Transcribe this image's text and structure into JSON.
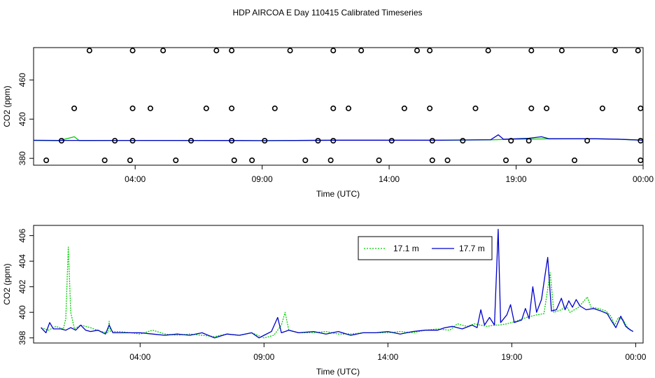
{
  "colors": {
    "green": "#00cc00",
    "blue": "#0000cc",
    "axis": "#000000"
  },
  "chart_data": [
    {
      "type": "scatter",
      "title": "HDP AIRCOA E  Day 110415  Calibrated Timeseries",
      "xlabel": "Time (UTC)",
      "ylabel": "CO2 (ppm)",
      "xlim": [
        0,
        24
      ],
      "ylim": [
        373,
        493
      ],
      "x_ticks": [
        4,
        9,
        14,
        19,
        24
      ],
      "x_tick_labels": [
        "04:00",
        "09:00",
        "14:00",
        "19:00",
        "00:00"
      ],
      "y_ticks": [
        380,
        420,
        460
      ],
      "y_tick_labels": [
        "380",
        "420",
        "460"
      ],
      "calibration_points": [
        {
          "x": 2.2,
          "y": 490
        },
        {
          "x": 3.9,
          "y": 490
        },
        {
          "x": 5.1,
          "y": 490
        },
        {
          "x": 7.2,
          "y": 490
        },
        {
          "x": 7.8,
          "y": 490
        },
        {
          "x": 10.1,
          "y": 490
        },
        {
          "x": 11.8,
          "y": 490
        },
        {
          "x": 12.9,
          "y": 490
        },
        {
          "x": 15.1,
          "y": 490
        },
        {
          "x": 15.6,
          "y": 490
        },
        {
          "x": 17.9,
          "y": 490
        },
        {
          "x": 19.6,
          "y": 490
        },
        {
          "x": 20.8,
          "y": 490
        },
        {
          "x": 22.9,
          "y": 490
        },
        {
          "x": 23.8,
          "y": 490
        },
        {
          "x": 1.6,
          "y": 431
        },
        {
          "x": 3.9,
          "y": 431
        },
        {
          "x": 4.6,
          "y": 431
        },
        {
          "x": 6.8,
          "y": 431
        },
        {
          "x": 7.8,
          "y": 431
        },
        {
          "x": 9.5,
          "y": 431
        },
        {
          "x": 11.8,
          "y": 431
        },
        {
          "x": 12.4,
          "y": 431
        },
        {
          "x": 14.6,
          "y": 431
        },
        {
          "x": 15.6,
          "y": 431
        },
        {
          "x": 17.4,
          "y": 431
        },
        {
          "x": 19.6,
          "y": 431
        },
        {
          "x": 20.2,
          "y": 431
        },
        {
          "x": 22.4,
          "y": 431
        },
        {
          "x": 23.9,
          "y": 431
        },
        {
          "x": 1.1,
          "y": 398
        },
        {
          "x": 3.2,
          "y": 398
        },
        {
          "x": 3.9,
          "y": 398
        },
        {
          "x": 6.2,
          "y": 398
        },
        {
          "x": 7.8,
          "y": 398
        },
        {
          "x": 9.1,
          "y": 398
        },
        {
          "x": 11.2,
          "y": 398
        },
        {
          "x": 11.8,
          "y": 398
        },
        {
          "x": 14.1,
          "y": 398
        },
        {
          "x": 15.7,
          "y": 398
        },
        {
          "x": 16.9,
          "y": 398
        },
        {
          "x": 19.5,
          "y": 398
        },
        {
          "x": 18.8,
          "y": 398
        },
        {
          "x": 21.8,
          "y": 398
        },
        {
          "x": 23.9,
          "y": 398
        },
        {
          "x": 0.5,
          "y": 378
        },
        {
          "x": 2.8,
          "y": 378
        },
        {
          "x": 3.8,
          "y": 378
        },
        {
          "x": 5.6,
          "y": 378
        },
        {
          "x": 7.9,
          "y": 378
        },
        {
          "x": 8.6,
          "y": 378
        },
        {
          "x": 10.7,
          "y": 378
        },
        {
          "x": 11.7,
          "y": 378
        },
        {
          "x": 13.6,
          "y": 378
        },
        {
          "x": 15.7,
          "y": 378
        },
        {
          "x": 16.3,
          "y": 378
        },
        {
          "x": 18.6,
          "y": 378
        },
        {
          "x": 19.5,
          "y": 378
        },
        {
          "x": 21.3,
          "y": 378
        },
        {
          "x": 23.9,
          "y": 378
        }
      ],
      "series": [
        {
          "values": [
            [
              0,
              398.2
            ],
            [
              1,
              398.0
            ],
            [
              1.6,
              402.0
            ],
            [
              1.8,
              398.1
            ],
            [
              4,
              398.3
            ],
            [
              8,
              398.1
            ],
            [
              9,
              398.0
            ],
            [
              12,
              398.5
            ],
            [
              16,
              398.4
            ],
            [
              18,
              398.9
            ],
            [
              19,
              399.5
            ],
            [
              20,
              399.8
            ],
            [
              22,
              400.0
            ],
            [
              23,
              399.4
            ],
            [
              24,
              398.5
            ]
          ]
        },
        {
          "values": [
            [
              0,
              398.4
            ],
            [
              1,
              398.3
            ],
            [
              4,
              398.3
            ],
            [
              8,
              398.2
            ],
            [
              9,
              398.1
            ],
            [
              12,
              398.5
            ],
            [
              16,
              398.5
            ],
            [
              18,
              399.0
            ],
            [
              18.3,
              404.0
            ],
            [
              18.5,
              399.5
            ],
            [
              19.5,
              400.5
            ],
            [
              20,
              402.0
            ],
            [
              20.3,
              400.0
            ],
            [
              22,
              400.0
            ],
            [
              23,
              399.6
            ],
            [
              24,
              398.5
            ]
          ]
        }
      ]
    },
    {
      "type": "line",
      "xlabel": "Time (UTC)",
      "ylabel": "CO2 (ppm)",
      "xlim": [
        -0.3,
        24.3
      ],
      "ylim": [
        397.6,
        406.8
      ],
      "x_ticks": [
        4,
        9,
        14,
        19,
        24
      ],
      "x_tick_labels": [
        "04:00",
        "09:00",
        "14:00",
        "19:00",
        "00:00"
      ],
      "y_ticks": [
        398,
        400,
        402,
        404,
        406
      ],
      "y_tick_labels": [
        "398",
        "400",
        "402",
        "404",
        "406"
      ],
      "legend": "top-right",
      "series": [
        {
          "name": "17.1 m",
          "color": "#00cc00",
          "style": "dotted",
          "values": [
            [
              0.0,
              398.8
            ],
            [
              0.3,
              398.6
            ],
            [
              0.6,
              398.9
            ],
            [
              0.9,
              398.7
            ],
            [
              1.0,
              399.5
            ],
            [
              1.1,
              405.1
            ],
            [
              1.2,
              400.0
            ],
            [
              1.35,
              398.7
            ],
            [
              1.6,
              399.0
            ],
            [
              2.0,
              398.8
            ],
            [
              2.4,
              398.5
            ],
            [
              2.7,
              398.4
            ],
            [
              2.75,
              399.3
            ],
            [
              2.8,
              398.5
            ],
            [
              3.2,
              398.5
            ],
            [
              3.6,
              398.4
            ],
            [
              4.0,
              398.3
            ],
            [
              4.5,
              398.6
            ],
            [
              5.0,
              398.3
            ],
            [
              5.5,
              398.2
            ],
            [
              6.0,
              398.3
            ],
            [
              6.5,
              398.2
            ],
            [
              7.0,
              398.1
            ],
            [
              7.5,
              398.3
            ],
            [
              8.0,
              398.2
            ],
            [
              8.5,
              398.4
            ],
            [
              9.0,
              398.0
            ],
            [
              9.4,
              398.2
            ],
            [
              9.7,
              399.0
            ],
            [
              9.85,
              400.0
            ],
            [
              10.0,
              398.6
            ],
            [
              10.4,
              398.4
            ],
            [
              11.0,
              398.4
            ],
            [
              11.5,
              398.5
            ],
            [
              12.0,
              398.3
            ],
            [
              12.5,
              398.3
            ],
            [
              13.0,
              398.4
            ],
            [
              13.5,
              398.4
            ],
            [
              14.0,
              398.4
            ],
            [
              14.5,
              398.5
            ],
            [
              15.0,
              398.4
            ],
            [
              15.5,
              398.6
            ],
            [
              16.0,
              398.7
            ],
            [
              16.5,
              398.6
            ],
            [
              16.8,
              399.1
            ],
            [
              17.2,
              398.9
            ],
            [
              17.5,
              399.1
            ],
            [
              18.0,
              398.9
            ],
            [
              18.3,
              399.0
            ],
            [
              18.5,
              399.0
            ],
            [
              18.8,
              399.1
            ],
            [
              19.0,
              399.2
            ],
            [
              19.3,
              399.4
            ],
            [
              19.6,
              399.6
            ],
            [
              20.0,
              399.8
            ],
            [
              20.3,
              399.9
            ],
            [
              20.55,
              403.1
            ],
            [
              20.7,
              400.0
            ],
            [
              21.0,
              400.2
            ],
            [
              21.2,
              400.5
            ],
            [
              21.35,
              400.0
            ],
            [
              21.7,
              400.4
            ],
            [
              22.05,
              401.2
            ],
            [
              22.2,
              400.4
            ],
            [
              22.5,
              400.3
            ],
            [
              22.8,
              400.1
            ],
            [
              23.0,
              399.7
            ],
            [
              23.15,
              399.0
            ],
            [
              23.3,
              399.6
            ],
            [
              23.5,
              399.4
            ],
            [
              23.7,
              398.7
            ],
            [
              23.9,
              398.5
            ]
          ]
        },
        {
          "name": "17.7 m",
          "color": "#0000cc",
          "style": "solid",
          "values": [
            [
              0.0,
              398.8
            ],
            [
              0.2,
              398.4
            ],
            [
              0.35,
              399.2
            ],
            [
              0.5,
              398.7
            ],
            [
              0.8,
              398.7
            ],
            [
              1.0,
              398.6
            ],
            [
              1.2,
              398.8
            ],
            [
              1.4,
              398.6
            ],
            [
              1.6,
              399.0
            ],
            [
              1.8,
              398.6
            ],
            [
              2.0,
              398.5
            ],
            [
              2.3,
              398.6
            ],
            [
              2.6,
              398.3
            ],
            [
              2.75,
              399.0
            ],
            [
              2.9,
              398.4
            ],
            [
              3.3,
              398.4
            ],
            [
              3.7,
              398.4
            ],
            [
              4.0,
              398.4
            ],
            [
              4.5,
              398.3
            ],
            [
              5.0,
              398.2
            ],
            [
              5.5,
              398.3
            ],
            [
              6.0,
              398.2
            ],
            [
              6.5,
              398.4
            ],
            [
              7.0,
              398.0
            ],
            [
              7.5,
              398.3
            ],
            [
              8.0,
              398.2
            ],
            [
              8.5,
              398.4
            ],
            [
              8.8,
              398.0
            ],
            [
              9.0,
              398.2
            ],
            [
              9.3,
              398.5
            ],
            [
              9.55,
              399.6
            ],
            [
              9.7,
              398.4
            ],
            [
              10.0,
              398.6
            ],
            [
              10.4,
              398.4
            ],
            [
              11.0,
              398.5
            ],
            [
              11.5,
              398.3
            ],
            [
              12.0,
              398.5
            ],
            [
              12.5,
              398.2
            ],
            [
              13.0,
              398.4
            ],
            [
              13.5,
              398.4
            ],
            [
              14.0,
              398.5
            ],
            [
              14.5,
              398.3
            ],
            [
              15.0,
              398.5
            ],
            [
              15.5,
              398.6
            ],
            [
              16.0,
              398.6
            ],
            [
              16.3,
              398.8
            ],
            [
              16.6,
              398.9
            ],
            [
              17.0,
              398.7
            ],
            [
              17.4,
              399.0
            ],
            [
              17.6,
              398.8
            ],
            [
              17.75,
              400.2
            ],
            [
              17.9,
              399.0
            ],
            [
              18.1,
              399.6
            ],
            [
              18.3,
              399.0
            ],
            [
              18.45,
              406.5
            ],
            [
              18.55,
              399.2
            ],
            [
              18.8,
              399.8
            ],
            [
              18.95,
              400.6
            ],
            [
              19.1,
              399.2
            ],
            [
              19.4,
              399.4
            ],
            [
              19.55,
              400.3
            ],
            [
              19.7,
              399.5
            ],
            [
              19.85,
              402.0
            ],
            [
              20.0,
              400.0
            ],
            [
              20.2,
              401.0
            ],
            [
              20.35,
              403.0
            ],
            [
              20.45,
              404.3
            ],
            [
              20.6,
              400.1
            ],
            [
              20.8,
              400.2
            ],
            [
              21.0,
              401.1
            ],
            [
              21.15,
              400.2
            ],
            [
              21.3,
              400.9
            ],
            [
              21.45,
              400.4
            ],
            [
              21.6,
              401.0
            ],
            [
              21.75,
              400.5
            ],
            [
              22.0,
              400.2
            ],
            [
              22.3,
              400.3
            ],
            [
              22.6,
              400.1
            ],
            [
              22.85,
              399.9
            ],
            [
              23.0,
              399.4
            ],
            [
              23.2,
              398.8
            ],
            [
              23.4,
              399.7
            ],
            [
              23.6,
              398.9
            ],
            [
              23.8,
              398.6
            ],
            [
              23.9,
              398.5
            ]
          ]
        }
      ]
    }
  ]
}
